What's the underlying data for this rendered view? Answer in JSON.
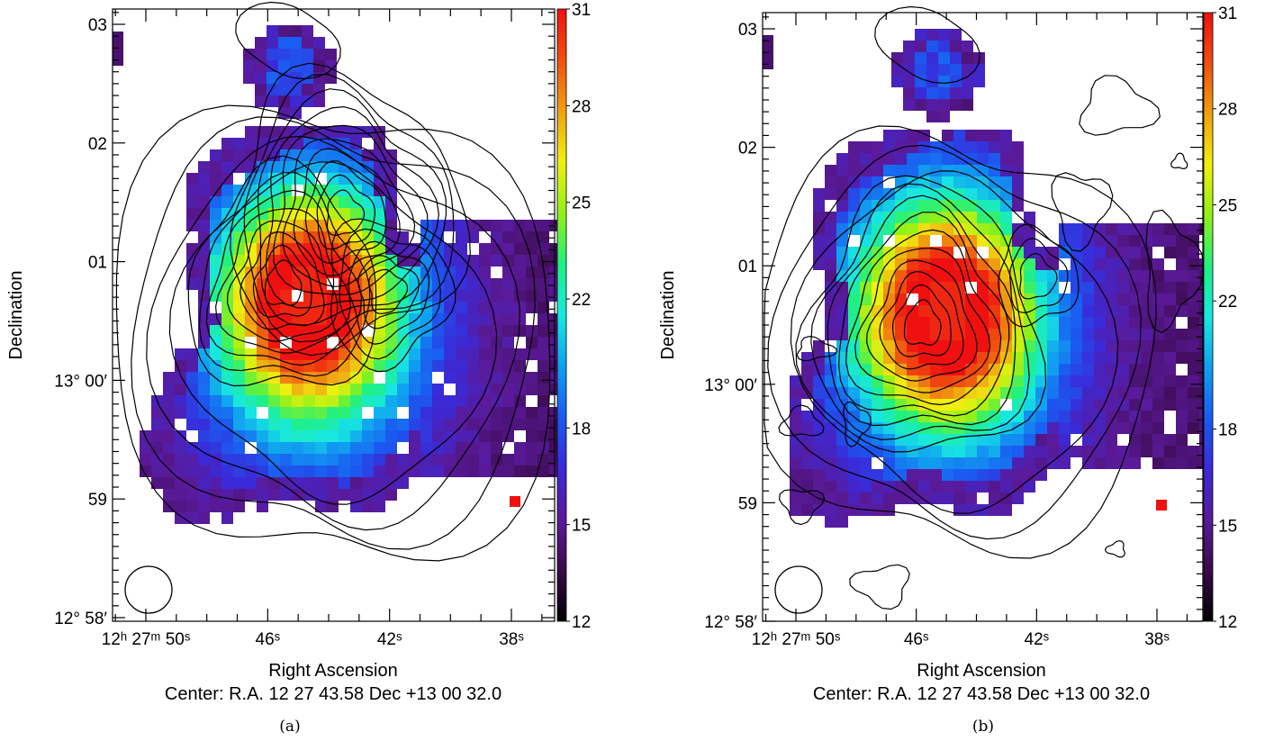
{
  "panels": [
    {
      "id": "a",
      "caption": "(a)",
      "y_axis_label": "Declination",
      "x_axis_label": "Right Ascension",
      "center_text": "Center:  R.A. 12 27 43.58     Dec  +13 00 32.0",
      "ra_ticks": [
        {
          "label": "12ʰ 27ᵐ 50ˢ",
          "ra_s": 50
        },
        {
          "label": "46ˢ",
          "ra_s": 46
        },
        {
          "label": "42ˢ",
          "ra_s": 42
        },
        {
          "label": "38ˢ",
          "ra_s": 38
        }
      ],
      "dec_ticks": [
        {
          "label": "03",
          "dec_min": 3
        },
        {
          "label": "02",
          "dec_min": 2
        },
        {
          "label": "01",
          "dec_min": 1
        },
        {
          "label": "13° 00′",
          "dec_min": 0
        },
        {
          "label": "59",
          "dec_min": -1
        },
        {
          "label": "12° 58′",
          "dec_min": -2
        }
      ],
      "colorbar": {
        "min": 12,
        "max": 31,
        "ticks": [
          "31",
          "28",
          "25",
          "22",
          "18",
          "15",
          "12"
        ],
        "tick_values": [
          31,
          28,
          25,
          22,
          18,
          15,
          12
        ]
      },
      "contour_peaks": [
        {
          "ra_s": 45.5,
          "dec_min": 0.8,
          "levels": 8
        },
        {
          "ra_s": 43.5,
          "dec_min": 1.4,
          "levels": 10
        },
        {
          "ra_s": 42.1,
          "dec_min": 0.75,
          "levels": 5
        }
      ]
    },
    {
      "id": "b",
      "caption": "(b)",
      "y_axis_label": "Declination",
      "x_axis_label": "Right Ascension",
      "center_text": "Center:  R.A. 12 27 43.58     Dec  +13 00 32.0",
      "ra_ticks": [
        {
          "label": "12ʰ 27ᵐ 50ˢ",
          "ra_s": 50
        },
        {
          "label": "46ˢ",
          "ra_s": 46
        },
        {
          "label": "42ˢ",
          "ra_s": 42
        },
        {
          "label": "38ˢ",
          "ra_s": 38
        }
      ],
      "dec_ticks": [
        {
          "label": "03",
          "dec_min": 3
        },
        {
          "label": "02",
          "dec_min": 2
        },
        {
          "label": "01",
          "dec_min": 1
        },
        {
          "label": "13° 00′",
          "dec_min": 0
        },
        {
          "label": "59",
          "dec_min": -1
        },
        {
          "label": "12° 58′",
          "dec_min": -2
        }
      ],
      "colorbar": {
        "min": 12,
        "max": 31,
        "ticks": [
          "31",
          "28",
          "25",
          "22",
          "18",
          "15",
          "12"
        ],
        "tick_values": [
          31,
          28,
          25,
          22,
          18,
          15,
          12
        ]
      },
      "contour_peaks": [
        {
          "ra_s": 45.8,
          "dec_min": 0.5,
          "levels": 10
        },
        {
          "ra_s": 42.0,
          "dec_min": 0.9,
          "levels": 3
        }
      ]
    }
  ],
  "colors": {
    "scale": [
      "#000000",
      "#3a0a4a",
      "#5a1a9a",
      "#3a2ad8",
      "#1a5af0",
      "#10a0f0",
      "#18e8e0",
      "#20f080",
      "#90f018",
      "#f0f010",
      "#f0a010",
      "#f05010",
      "#f01010"
    ]
  }
}
